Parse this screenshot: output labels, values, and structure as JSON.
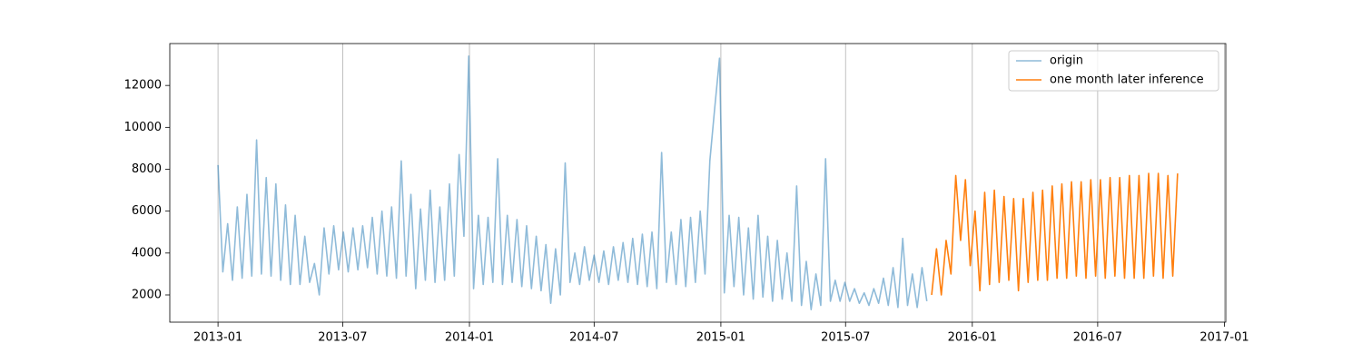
{
  "chart_data": {
    "type": "line",
    "x_is_date": true,
    "xlim": [
      "2012-10-23",
      "2017-01-03"
    ],
    "xticks": [
      "2013-01",
      "2013-07",
      "2014-01",
      "2014-07",
      "2015-01",
      "2015-07",
      "2016-01",
      "2016-07",
      "2017-01"
    ],
    "ylim": [
      700,
      14000
    ],
    "yticks": [
      2000,
      4000,
      6000,
      8000,
      10000,
      12000
    ],
    "grid": "x",
    "legend": "upper right",
    "series": [
      {
        "name": "origin",
        "color": "#1f77b4",
        "alpha": 0.5,
        "x": [
          "2013-01-01",
          "2013-01-08",
          "2013-01-15",
          "2013-01-22",
          "2013-01-29",
          "2013-02-05",
          "2013-02-12",
          "2013-02-19",
          "2013-02-26",
          "2013-03-05",
          "2013-03-12",
          "2013-03-19",
          "2013-03-26",
          "2013-04-02",
          "2013-04-09",
          "2013-04-16",
          "2013-04-23",
          "2013-04-30",
          "2013-05-07",
          "2013-05-14",
          "2013-05-21",
          "2013-05-28",
          "2013-06-04",
          "2013-06-11",
          "2013-06-18",
          "2013-06-25",
          "2013-07-02",
          "2013-07-09",
          "2013-07-16",
          "2013-07-23",
          "2013-07-30",
          "2013-08-06",
          "2013-08-13",
          "2013-08-20",
          "2013-08-27",
          "2013-09-03",
          "2013-09-10",
          "2013-09-17",
          "2013-09-24",
          "2013-10-01",
          "2013-10-08",
          "2013-10-15",
          "2013-10-22",
          "2013-10-29",
          "2013-11-05",
          "2013-11-12",
          "2013-11-19",
          "2013-11-26",
          "2013-12-03",
          "2013-12-10",
          "2013-12-17",
          "2013-12-24",
          "2013-12-31",
          "2014-01-07",
          "2014-01-14",
          "2014-01-21",
          "2014-01-28",
          "2014-02-04",
          "2014-02-11",
          "2014-02-18",
          "2014-02-25",
          "2014-03-04",
          "2014-03-11",
          "2014-03-18",
          "2014-03-25",
          "2014-04-01",
          "2014-04-08",
          "2014-04-15",
          "2014-04-22",
          "2014-04-29",
          "2014-05-06",
          "2014-05-13",
          "2014-05-20",
          "2014-05-27",
          "2014-06-03",
          "2014-06-10",
          "2014-06-17",
          "2014-06-24",
          "2014-07-01",
          "2014-07-08",
          "2014-07-15",
          "2014-07-22",
          "2014-07-29",
          "2014-08-05",
          "2014-08-12",
          "2014-08-19",
          "2014-08-26",
          "2014-09-02",
          "2014-09-09",
          "2014-09-16",
          "2014-09-23",
          "2014-09-30",
          "2014-10-07",
          "2014-10-14",
          "2014-10-21",
          "2014-10-28",
          "2014-11-04",
          "2014-11-11",
          "2014-11-18",
          "2014-11-25",
          "2014-12-02",
          "2014-12-09",
          "2014-12-16",
          "2014-12-23",
          "2014-12-30",
          "2015-01-06",
          "2015-01-13",
          "2015-01-20",
          "2015-01-27",
          "2015-02-03",
          "2015-02-10",
          "2015-02-17",
          "2015-02-24",
          "2015-03-03",
          "2015-03-10",
          "2015-03-17",
          "2015-03-24",
          "2015-03-31",
          "2015-04-07",
          "2015-04-14",
          "2015-04-21",
          "2015-04-28",
          "2015-05-05",
          "2015-05-12",
          "2015-05-19",
          "2015-05-26",
          "2015-06-02",
          "2015-06-09",
          "2015-06-16",
          "2015-06-23",
          "2015-06-30",
          "2015-07-07",
          "2015-07-14",
          "2015-07-21",
          "2015-07-28",
          "2015-08-04",
          "2015-08-11",
          "2015-08-18",
          "2015-08-25",
          "2015-09-01",
          "2015-09-08",
          "2015-09-15",
          "2015-09-22",
          "2015-09-29",
          "2015-10-06",
          "2015-10-13",
          "2015-10-20",
          "2015-10-27"
        ],
        "values": [
          8200,
          3100,
          5400,
          2700,
          6200,
          2800,
          6800,
          2900,
          9400,
          3000,
          7600,
          2900,
          7300,
          2700,
          6300,
          2500,
          5800,
          2500,
          4800,
          2600,
          3500,
          2000,
          5200,
          3000,
          5300,
          3200,
          5000,
          3100,
          5200,
          3200,
          5300,
          3300,
          5700,
          3000,
          6000,
          2900,
          6200,
          2800,
          8400,
          2900,
          6800,
          2300,
          6100,
          2700,
          7000,
          2600,
          6200,
          2700,
          7300,
          2900,
          8700,
          4800,
          13400,
          2300,
          5800,
          2500,
          5700,
          2600,
          8500,
          2500,
          5800,
          2600,
          5600,
          2400,
          5300,
          2300,
          4800,
          2200,
          4400,
          1600,
          4200,
          2000,
          8300,
          2600,
          4000,
          2500,
          4300,
          2700,
          3900,
          2600,
          4100,
          2500,
          4300,
          2700,
          4500,
          2600,
          4700,
          2500,
          4900,
          2400,
          5000,
          2300,
          8800,
          2600,
          5000,
          2500,
          5600,
          2400,
          5700,
          2600,
          6000,
          3000,
          8400,
          10900,
          13300,
          2100,
          5800,
          2400,
          5700,
          2000,
          5200,
          1800,
          5800,
          1900,
          4800,
          1700,
          4600,
          1800,
          4000,
          1700,
          7200,
          1500,
          3600,
          1300,
          3000,
          1500,
          8500,
          1700,
          2700,
          1700,
          2600,
          1700,
          2300,
          1600,
          2100,
          1500,
          2300,
          1600,
          2800,
          1500,
          3300,
          1400,
          4700,
          1500,
          3000,
          1400,
          3300,
          1700
        ]
      },
      {
        "name": "one month later inference",
        "color": "#ff7f0e",
        "alpha": 1,
        "x": [
          "2015-11-03",
          "2015-11-10",
          "2015-11-17",
          "2015-11-24",
          "2015-12-01",
          "2015-12-08",
          "2015-12-15",
          "2015-12-22",
          "2015-12-29",
          "2016-01-05",
          "2016-01-12",
          "2016-01-19",
          "2016-01-26",
          "2016-02-02",
          "2016-02-09",
          "2016-02-16",
          "2016-02-23",
          "2016-03-01",
          "2016-03-08",
          "2016-03-15",
          "2016-03-22",
          "2016-03-29",
          "2016-04-05",
          "2016-04-12",
          "2016-04-19",
          "2016-04-26",
          "2016-05-03",
          "2016-05-10",
          "2016-05-17",
          "2016-05-24",
          "2016-05-31",
          "2016-06-07",
          "2016-06-14",
          "2016-06-21",
          "2016-06-28",
          "2016-07-05",
          "2016-07-12",
          "2016-07-19",
          "2016-07-26",
          "2016-08-02",
          "2016-08-09",
          "2016-08-16",
          "2016-08-23",
          "2016-08-30",
          "2016-09-06",
          "2016-09-13",
          "2016-09-20",
          "2016-09-27",
          "2016-10-04",
          "2016-10-11",
          "2016-10-18",
          "2016-10-25"
        ],
        "values": [
          2000,
          4200,
          2000,
          4600,
          3000,
          7700,
          4600,
          7500,
          3400,
          6000,
          2200,
          6900,
          2500,
          7000,
          2600,
          6700,
          2700,
          6600,
          2200,
          6600,
          2600,
          6900,
          2700,
          7000,
          2700,
          7200,
          2800,
          7300,
          2800,
          7400,
          2900,
          7400,
          2800,
          7500,
          2900,
          7500,
          2800,
          7600,
          2900,
          7600,
          2800,
          7700,
          2800,
          7700,
          2800,
          7800,
          2900,
          7800,
          2800,
          7700,
          2900,
          7800
        ]
      }
    ]
  }
}
